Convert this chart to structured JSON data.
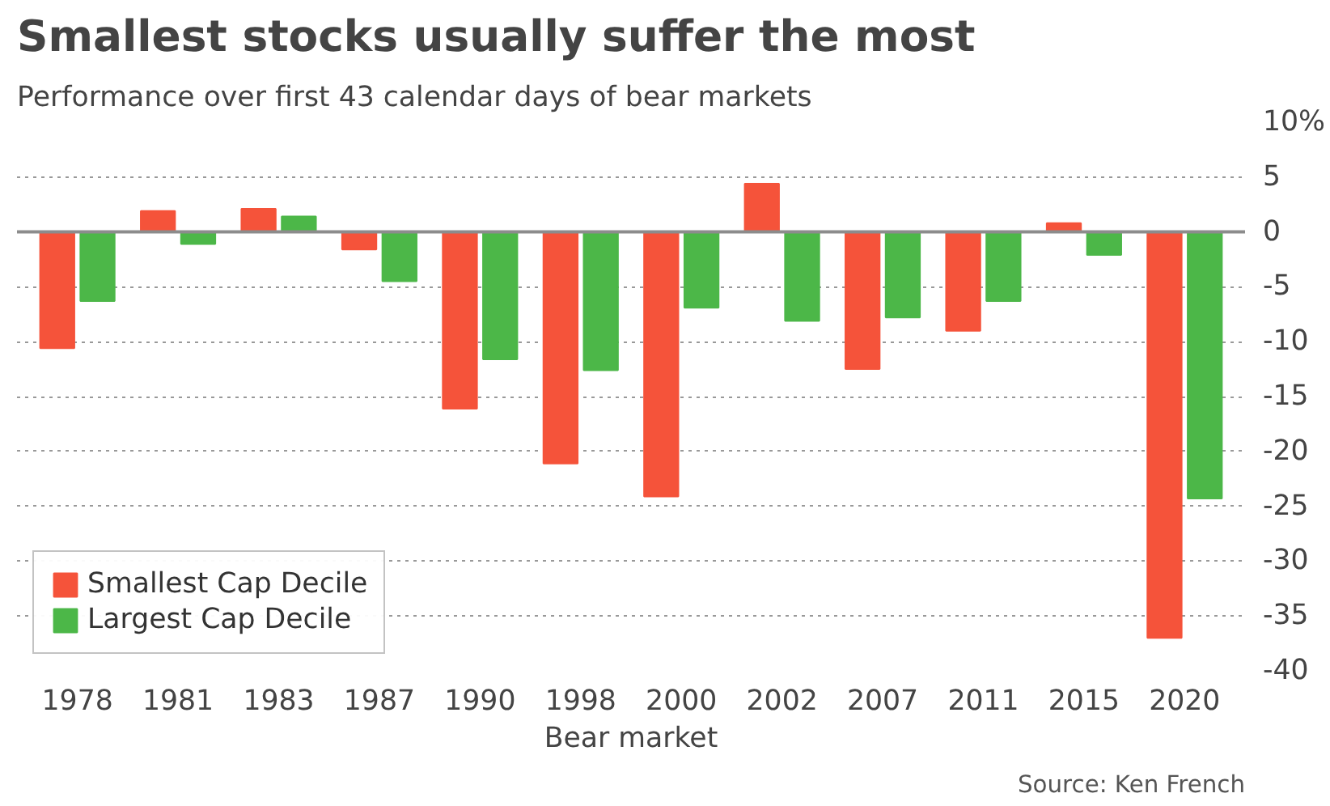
{
  "chart_data": {
    "type": "bar",
    "title": "Smallest stocks usually suffer the most",
    "subtitle": "Performance over first 43 calendar days of bear markets",
    "xlabel": "Bear market",
    "annotations": [
      "Source: Ken French"
    ],
    "categories": [
      "1978",
      "1981",
      "1983",
      "1987",
      "1990",
      "1998",
      "2000",
      "2002",
      "2007",
      "2011",
      "2015",
      "2020"
    ],
    "series": [
      {
        "name": "Smallest Cap Decile",
        "color": "#f5533a",
        "values": [
          -10.6,
          1.9,
          2.1,
          -1.6,
          -16.1,
          -21.1,
          -24.1,
          4.4,
          -12.5,
          -9.0,
          0.8,
          -37.0
        ]
      },
      {
        "name": "Largest Cap Decile",
        "color": "#4cb748",
        "values": [
          -6.3,
          -1.1,
          1.4,
          -4.5,
          -11.6,
          -12.6,
          -6.9,
          -8.1,
          -7.8,
          -6.3,
          -2.1,
          -24.3
        ]
      }
    ],
    "ylim": [
      -40,
      10
    ],
    "yticks": [
      {
        "value": 10,
        "label": "10%"
      },
      5,
      0,
      -5,
      -10,
      -15,
      -20,
      -25,
      -30,
      -35,
      -40
    ],
    "ref_lines": [
      {
        "axis": "y",
        "value": 0,
        "color": "#8c8c8c"
      }
    ],
    "grid": "y",
    "legend": "bottom left"
  }
}
